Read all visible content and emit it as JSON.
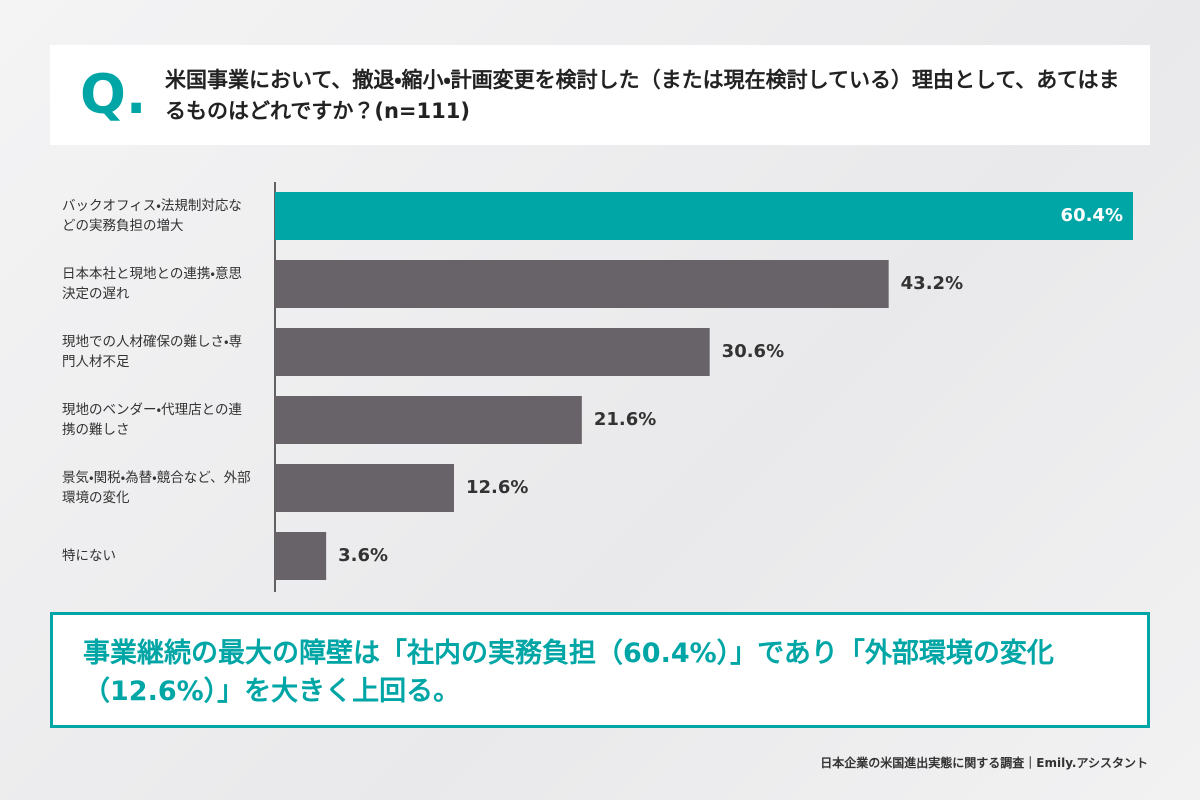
{
  "badge": "Q.",
  "question": "米国事業において、撤退・縮小・計画変更を検討した（または現在検討している）理由として、あてはまるものはどれですか？(n=111)",
  "chart_data": {
    "type": "bar",
    "orientation": "horizontal",
    "categories": [
      "バックオフィス・法規制対応などの実務負担の増大",
      "日本本社と現地との連携・意思決定の遅れ",
      "現地での人材確保の難しさ・専門人材不足",
      "現地のベンダー・代理店との連携の難しさ",
      "景気・関税・為替・競合など、外部環境の変化",
      "特にない"
    ],
    "values": [
      60.4,
      43.2,
      30.6,
      21.6,
      12.6,
      3.6
    ],
    "value_labels": [
      "60.4%",
      "43.2%",
      "30.6%",
      "21.6%",
      "12.6%",
      "3.6%"
    ],
    "colors": [
      "#00a6a6",
      "#686368",
      "#686368",
      "#686368",
      "#686368",
      "#686368"
    ],
    "xlim": [
      0,
      60.4
    ]
  },
  "conclusion": "事業継続の最大の障壁は「社内の実務負担（60.4%）」であり「外部環境の変化（12.6%）」を大きく上回る。",
  "footer": "日本企業の米国進出実態に関する調査｜Emily.アシスタント"
}
